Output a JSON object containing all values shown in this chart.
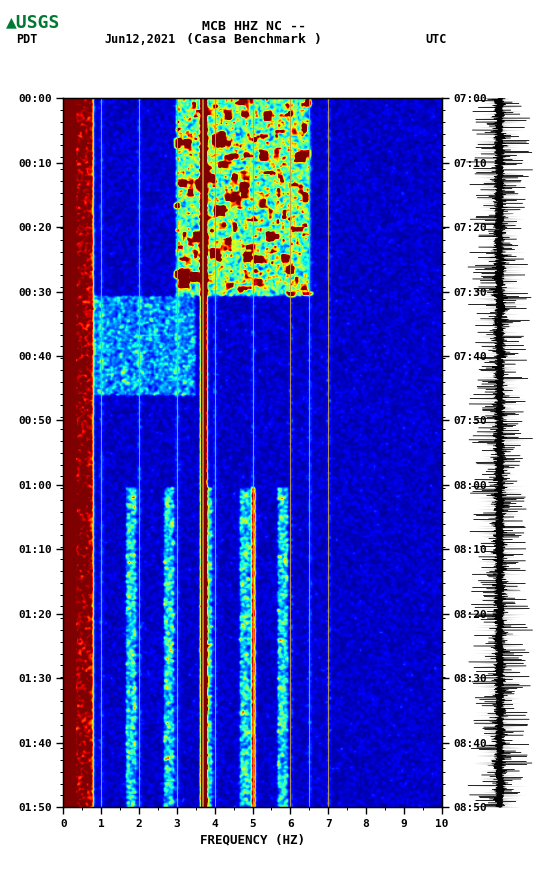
{
  "title_line1": "MCB HHZ NC --",
  "title_line2": "(Casa Benchmark )",
  "date_label": "Jun12,2021",
  "tz_left": "PDT",
  "tz_right": "UTC",
  "time_left_start": "00:00",
  "time_left_end": "01:50",
  "time_right_start": "07:00",
  "time_right_end": "08:50",
  "freq_min": 0,
  "freq_max": 10,
  "freq_label": "FREQUENCY (HZ)",
  "freq_ticks": [
    0,
    1,
    2,
    3,
    4,
    5,
    6,
    7,
    8,
    9,
    10
  ],
  "time_ticks_left": [
    "00:00",
    "00:10",
    "00:20",
    "00:30",
    "00:40",
    "00:50",
    "01:00",
    "01:10",
    "01:20",
    "01:30",
    "01:40",
    "01:50"
  ],
  "time_ticks_right": [
    "07:00",
    "07:10",
    "07:20",
    "07:30",
    "07:40",
    "07:50",
    "08:00",
    "08:10",
    "08:20",
    "08:30",
    "08:40",
    "08:50"
  ],
  "n_time": 600,
  "n_freq": 300,
  "bg_color": "#ffffff",
  "vertical_line_freqs": [
    1.0,
    2.0,
    3.0,
    3.7,
    4.0,
    5.0,
    6.0,
    6.5,
    7.0
  ],
  "vertical_line_color": "#c8a040",
  "waveform_color": "#000000",
  "cmap_vmin": 0,
  "cmap_vmax": 6
}
